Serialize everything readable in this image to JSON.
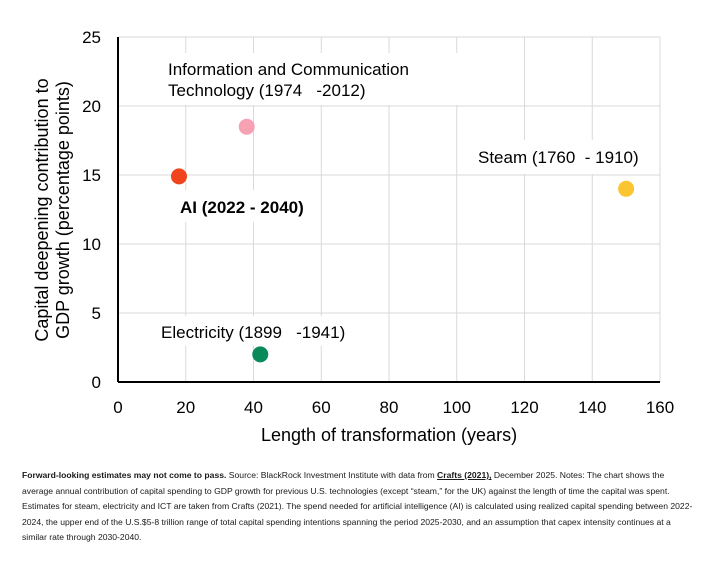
{
  "chart_data": {
    "type": "scatter",
    "xlabel": "Length of transformation (years)",
    "ylabel": "Capital deepening contribution to GDP growth (percentage points)",
    "ylabel_lines": [
      "Capital deepening contribution to",
      "GDP growth (percentage points)"
    ],
    "xlim": [
      0,
      160
    ],
    "ylim": [
      0,
      25
    ],
    "x_ticks": [
      0,
      20,
      40,
      60,
      80,
      100,
      120,
      140,
      160
    ],
    "y_ticks": [
      0,
      5,
      10,
      15,
      20,
      25
    ],
    "grid": true,
    "points": [
      {
        "label_lines": [
          "AI (2022 - 2040)"
        ],
        "x": 18,
        "y": 14.9,
        "color": "#f0441c",
        "bold": true
      },
      {
        "label_lines": [
          "Information and Communication",
          "Technology (1974   -2012)"
        ],
        "x": 38,
        "y": 18.5,
        "color": "#f7a1b5",
        "bold": false
      },
      {
        "label_lines": [
          "Electricity (1899   -1941)"
        ],
        "x": 42,
        "y": 2.0,
        "color": "#0a8a5a",
        "bold": false
      },
      {
        "label_lines": [
          "Steam (1760  - 1910)"
        ],
        "x": 150,
        "y": 14.0,
        "color": "#fbc531",
        "bold": false
      }
    ]
  },
  "footnote": {
    "bold_lead": "Forward-looking estimates may not come to pass.",
    "text_before_link": " Source: BlackRock Investment Institute with data from ",
    "link": "Crafts (2021),",
    "text_after_link": " December 2025. Notes: The chart shows the average annual contribution of capital spending to GDP growth for previous U.S. technologies (except “steam,” for the UK) against the length of time the capital was spent. Estimates for steam, electricity and ICT are taken from Crafts (2021). The spend needed for artificial intelligence (AI) is calculated using realized capital spending between 2022-2024, the upper end of the U.S.$5-8 trillion range of total capital spending intentions spanning the period 2025-2030, and an assumption that capex intensity continues at a similar rate through 2030-2040."
  }
}
